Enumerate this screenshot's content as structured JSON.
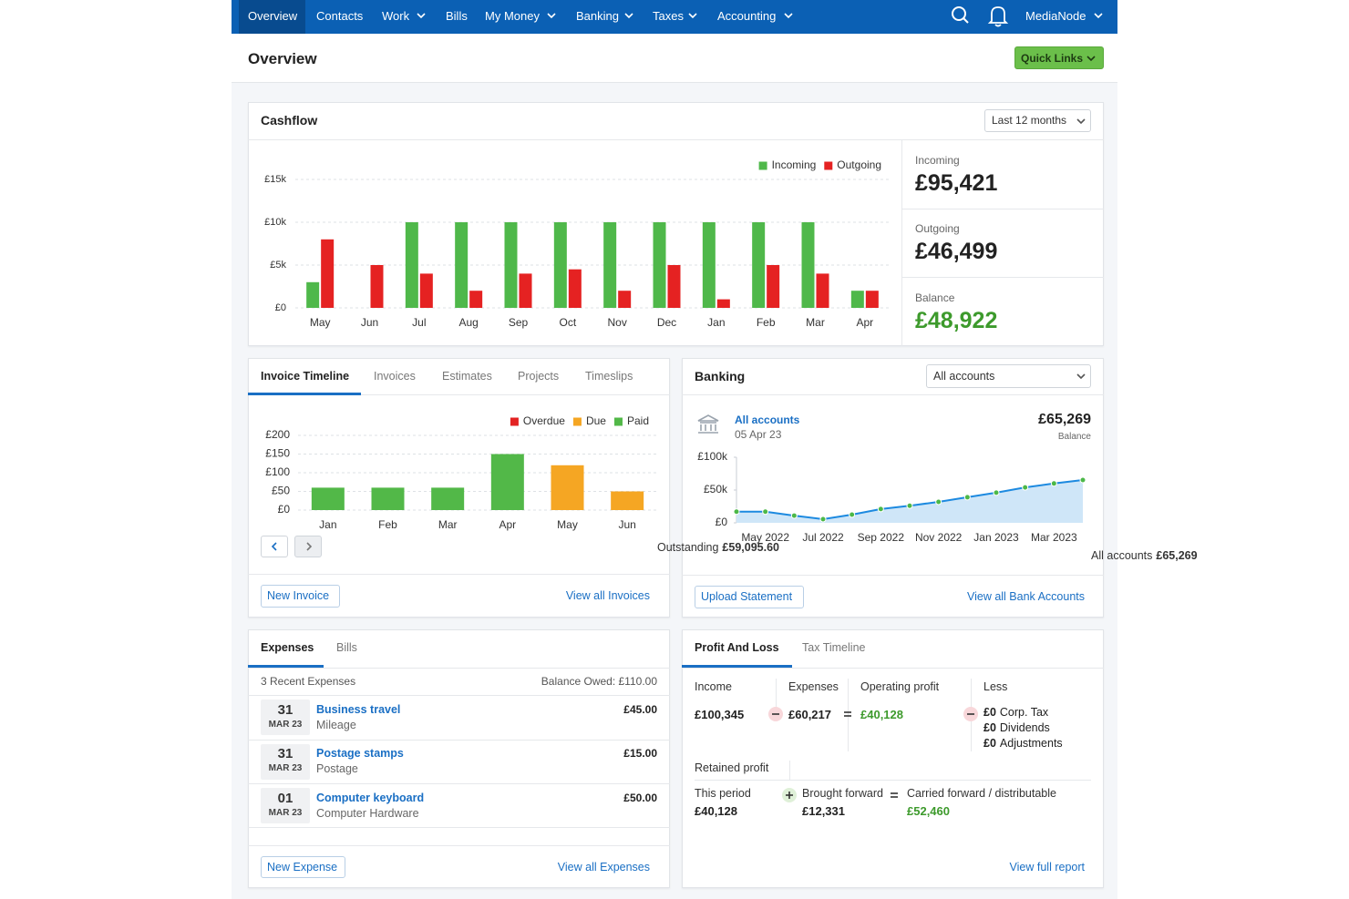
{
  "nav": {
    "items": [
      "Overview",
      "Contacts",
      "Work",
      "Bills",
      "My Money",
      "Banking",
      "Taxes",
      "Accounting"
    ],
    "account": "MediaNode"
  },
  "header": {
    "title": "Overview",
    "button": "Quick Links"
  },
  "cashflow": {
    "title": "Cashflow",
    "period": "Last 12 months",
    "summary": [
      {
        "label": "Incoming",
        "value": "£95,421"
      },
      {
        "label": "Outgoing",
        "value": "£46,499"
      },
      {
        "label": "Balance",
        "value": "£48,922"
      }
    ]
  },
  "invoices": {
    "tabs": [
      "Invoice Timeline",
      "Invoices",
      "Estimates",
      "Projects",
      "Timeslips"
    ],
    "outstanding_label": "Outstanding",
    "outstanding": "£59,095.60",
    "new_button": "New Invoice",
    "view_link": "View all Invoices"
  },
  "banking": {
    "title": "Banking",
    "select": "All accounts",
    "account": "All accounts",
    "date": "05 Apr 23",
    "balance": "£65,269",
    "balance_label": "Balance",
    "footer_label": "All accounts",
    "footer_value": "£65,269",
    "upload_button": "Upload Statement",
    "view_link": "View all Bank Accounts"
  },
  "expenses": {
    "tabs": [
      "Expenses",
      "Bills"
    ],
    "recent": "3 Recent Expenses",
    "balance_owed": "Balance Owed: £110.00",
    "rows": [
      {
        "day": "31",
        "month": "MAR 23",
        "title": "Business travel",
        "category": "Mileage",
        "amount": "£45.00"
      },
      {
        "day": "31",
        "month": "MAR 23",
        "title": "Postage stamps",
        "category": "Postage",
        "amount": "£15.00"
      },
      {
        "day": "01",
        "month": "MAR 23",
        "title": "Computer keyboard",
        "category": "Computer Hardware",
        "amount": "£50.00"
      }
    ],
    "new_button": "New Expense",
    "view_link": "View all Expenses"
  },
  "profit_loss": {
    "tabs": [
      "Profit And Loss",
      "Tax Timeline"
    ],
    "columns": [
      {
        "label": "Income",
        "value": "£100,345"
      },
      {
        "label": "Expenses",
        "value": "£60,217"
      },
      {
        "label": "Operating profit",
        "value": "£40,128"
      }
    ],
    "less_label": "Less",
    "less": [
      {
        "amount": "£0",
        "label": "Corp. Tax"
      },
      {
        "amount": "£0",
        "label": "Dividends"
      },
      {
        "amount": "£0",
        "label": "Adjustments"
      }
    ],
    "retained_label": "Retained profit",
    "retained": [
      {
        "label": "This period",
        "value": "£40,128"
      },
      {
        "label": "Brought forward",
        "value": "£12,331"
      },
      {
        "label": "Carried forward / distributable",
        "value": "£52,460"
      }
    ],
    "view_link": "View full report"
  },
  "chart_data": [
    {
      "type": "bar",
      "categories": [
        "May",
        "Jun",
        "Jul",
        "Aug",
        "Sep",
        "Oct",
        "Nov",
        "Dec",
        "Jan",
        "Feb",
        "Mar",
        "Apr"
      ],
      "series": [
        {
          "name": "Incoming",
          "color": "#4fb84a",
          "values": [
            3000,
            0,
            10000,
            10000,
            10000,
            10000,
            10000,
            10000,
            10000,
            10000,
            10000,
            2000
          ]
        },
        {
          "name": "Outgoing",
          "color": "#e52222",
          "values": [
            8000,
            5000,
            4000,
            2000,
            4000,
            4500,
            2000,
            5000,
            1000,
            5000,
            4000,
            2000
          ]
        }
      ],
      "ylim": [
        0,
        15000
      ],
      "yticks": [
        {
          "value": 0,
          "label": "£0"
        },
        {
          "value": 5000,
          "label": "£5k"
        },
        {
          "value": 10000,
          "label": "£10k"
        },
        {
          "value": 15000,
          "label": "£15k"
        }
      ],
      "grid": true,
      "legend": "top-right"
    },
    {
      "type": "bar",
      "stacked": true,
      "categories": [
        "Jan",
        "Feb",
        "Mar",
        "Apr",
        "May",
        "Jun"
      ],
      "series": [
        {
          "name": "Overdue",
          "color": "#e32323",
          "values": [
            0,
            0,
            0,
            0,
            0,
            0
          ]
        },
        {
          "name": "Due",
          "color": "#f5a623",
          "values": [
            0,
            0,
            0,
            0,
            120,
            50
          ]
        },
        {
          "name": "Paid",
          "color": "#52b848",
          "values": [
            60,
            60,
            60,
            150,
            0,
            0
          ]
        }
      ],
      "ylim": [
        0,
        200
      ],
      "yticks": [
        {
          "value": 0,
          "label": "£0"
        },
        {
          "value": 50,
          "label": "£50"
        },
        {
          "value": 100,
          "label": "£100"
        },
        {
          "value": 150,
          "label": "£150"
        },
        {
          "value": 200,
          "label": "£200"
        }
      ],
      "grid": true,
      "legend": "top-right"
    },
    {
      "type": "area",
      "categories": [
        null,
        "May 2022",
        null,
        "Jul 2022",
        null,
        "Sep 2022",
        null,
        "Nov 2022",
        null,
        "Jan 2023",
        null,
        "Mar 2023",
        null
      ],
      "values": [
        17000,
        17000,
        11000,
        5500,
        12500,
        21000,
        26000,
        32000,
        39000,
        46000,
        54000,
        60000,
        65269
      ],
      "color": "#1d8ae0",
      "fill": "#cfe6f8",
      "marker_color": "#4cb848",
      "ylim": [
        0,
        100000
      ],
      "yticks": [
        {
          "value": 0,
          "label": "£0"
        },
        {
          "value": 50000,
          "label": "£50k"
        },
        {
          "value": 100000,
          "label": "£100k"
        }
      ],
      "grid": false
    }
  ]
}
